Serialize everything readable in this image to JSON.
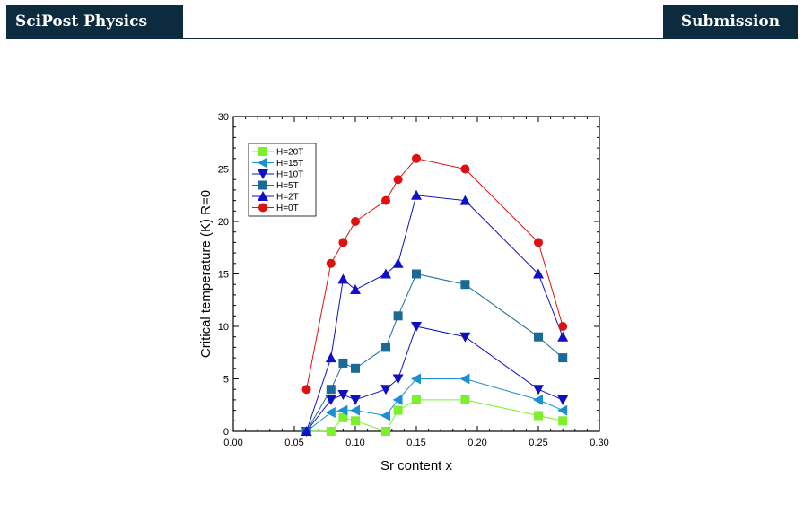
{
  "header": {
    "journal": "SciPost Physics",
    "badge": "Submission"
  },
  "colors": {
    "header_bg": "#0d2b3e",
    "header_text": "#ffffff"
  },
  "chart_data": {
    "type": "line",
    "xlabel": "Sr content  x",
    "ylabel": "Critical temperature (K) R=0",
    "xlim": [
      0,
      0.3
    ],
    "ylim": [
      0,
      30
    ],
    "xticks": [
      "0.00",
      "0.05",
      "0.10",
      "0.15",
      "0.20",
      "0.25",
      "0.30"
    ],
    "yticks": [
      "0",
      "5",
      "10",
      "15",
      "20",
      "25",
      "30"
    ],
    "grid": false,
    "legend_position": "top-left",
    "series": [
      {
        "name": "H=20T",
        "color": "#7cf02c",
        "marker": "square",
        "x": [
          0.06,
          0.08,
          0.09,
          0.1,
          0.125,
          0.135,
          0.15,
          0.19,
          0.25,
          0.27
        ],
        "y": [
          0,
          0,
          1.3,
          1.0,
          0,
          2.0,
          3.0,
          3.0,
          1.5,
          1.0
        ]
      },
      {
        "name": "H=15T",
        "color": "#1a90d0",
        "marker": "triangle-left",
        "x": [
          0.06,
          0.08,
          0.09,
          0.1,
          0.125,
          0.135,
          0.15,
          0.19,
          0.25,
          0.27
        ],
        "y": [
          0,
          1.8,
          2.0,
          2.0,
          1.5,
          3.0,
          5.0,
          5.0,
          3.0,
          2.0
        ]
      },
      {
        "name": "H=10T",
        "color": "#1010c0",
        "marker": "triangle-down",
        "x": [
          0.06,
          0.08,
          0.09,
          0.1,
          0.125,
          0.135,
          0.15,
          0.19,
          0.25,
          0.27
        ],
        "y": [
          0,
          3.0,
          3.5,
          3.0,
          4.0,
          5.0,
          10.0,
          9.0,
          4.0,
          3.0
        ]
      },
      {
        "name": "H=5T",
        "color": "#1a6a98",
        "marker": "square",
        "x": [
          0.06,
          0.08,
          0.09,
          0.1,
          0.125,
          0.135,
          0.15,
          0.19,
          0.25,
          0.27
        ],
        "y": [
          0,
          4.0,
          6.5,
          6.0,
          8.0,
          11.0,
          15.0,
          14.0,
          9.0,
          7.0
        ]
      },
      {
        "name": "H=2T",
        "color": "#1010c8",
        "marker": "triangle-up",
        "x": [
          0.06,
          0.08,
          0.09,
          0.1,
          0.125,
          0.135,
          0.15,
          0.19,
          0.25,
          0.27
        ],
        "y": [
          0,
          7.0,
          14.5,
          13.5,
          15.0,
          16.0,
          22.5,
          22.0,
          15.0,
          9.0
        ]
      },
      {
        "name": "H=0T",
        "color": "#e01010",
        "marker": "circle",
        "x": [
          0.06,
          0.08,
          0.09,
          0.1,
          0.125,
          0.135,
          0.15,
          0.19,
          0.25,
          0.27
        ],
        "y": [
          4.0,
          16.0,
          18.0,
          20.0,
          22.0,
          24.0,
          26.0,
          25.0,
          18.0,
          10.0
        ]
      }
    ]
  }
}
